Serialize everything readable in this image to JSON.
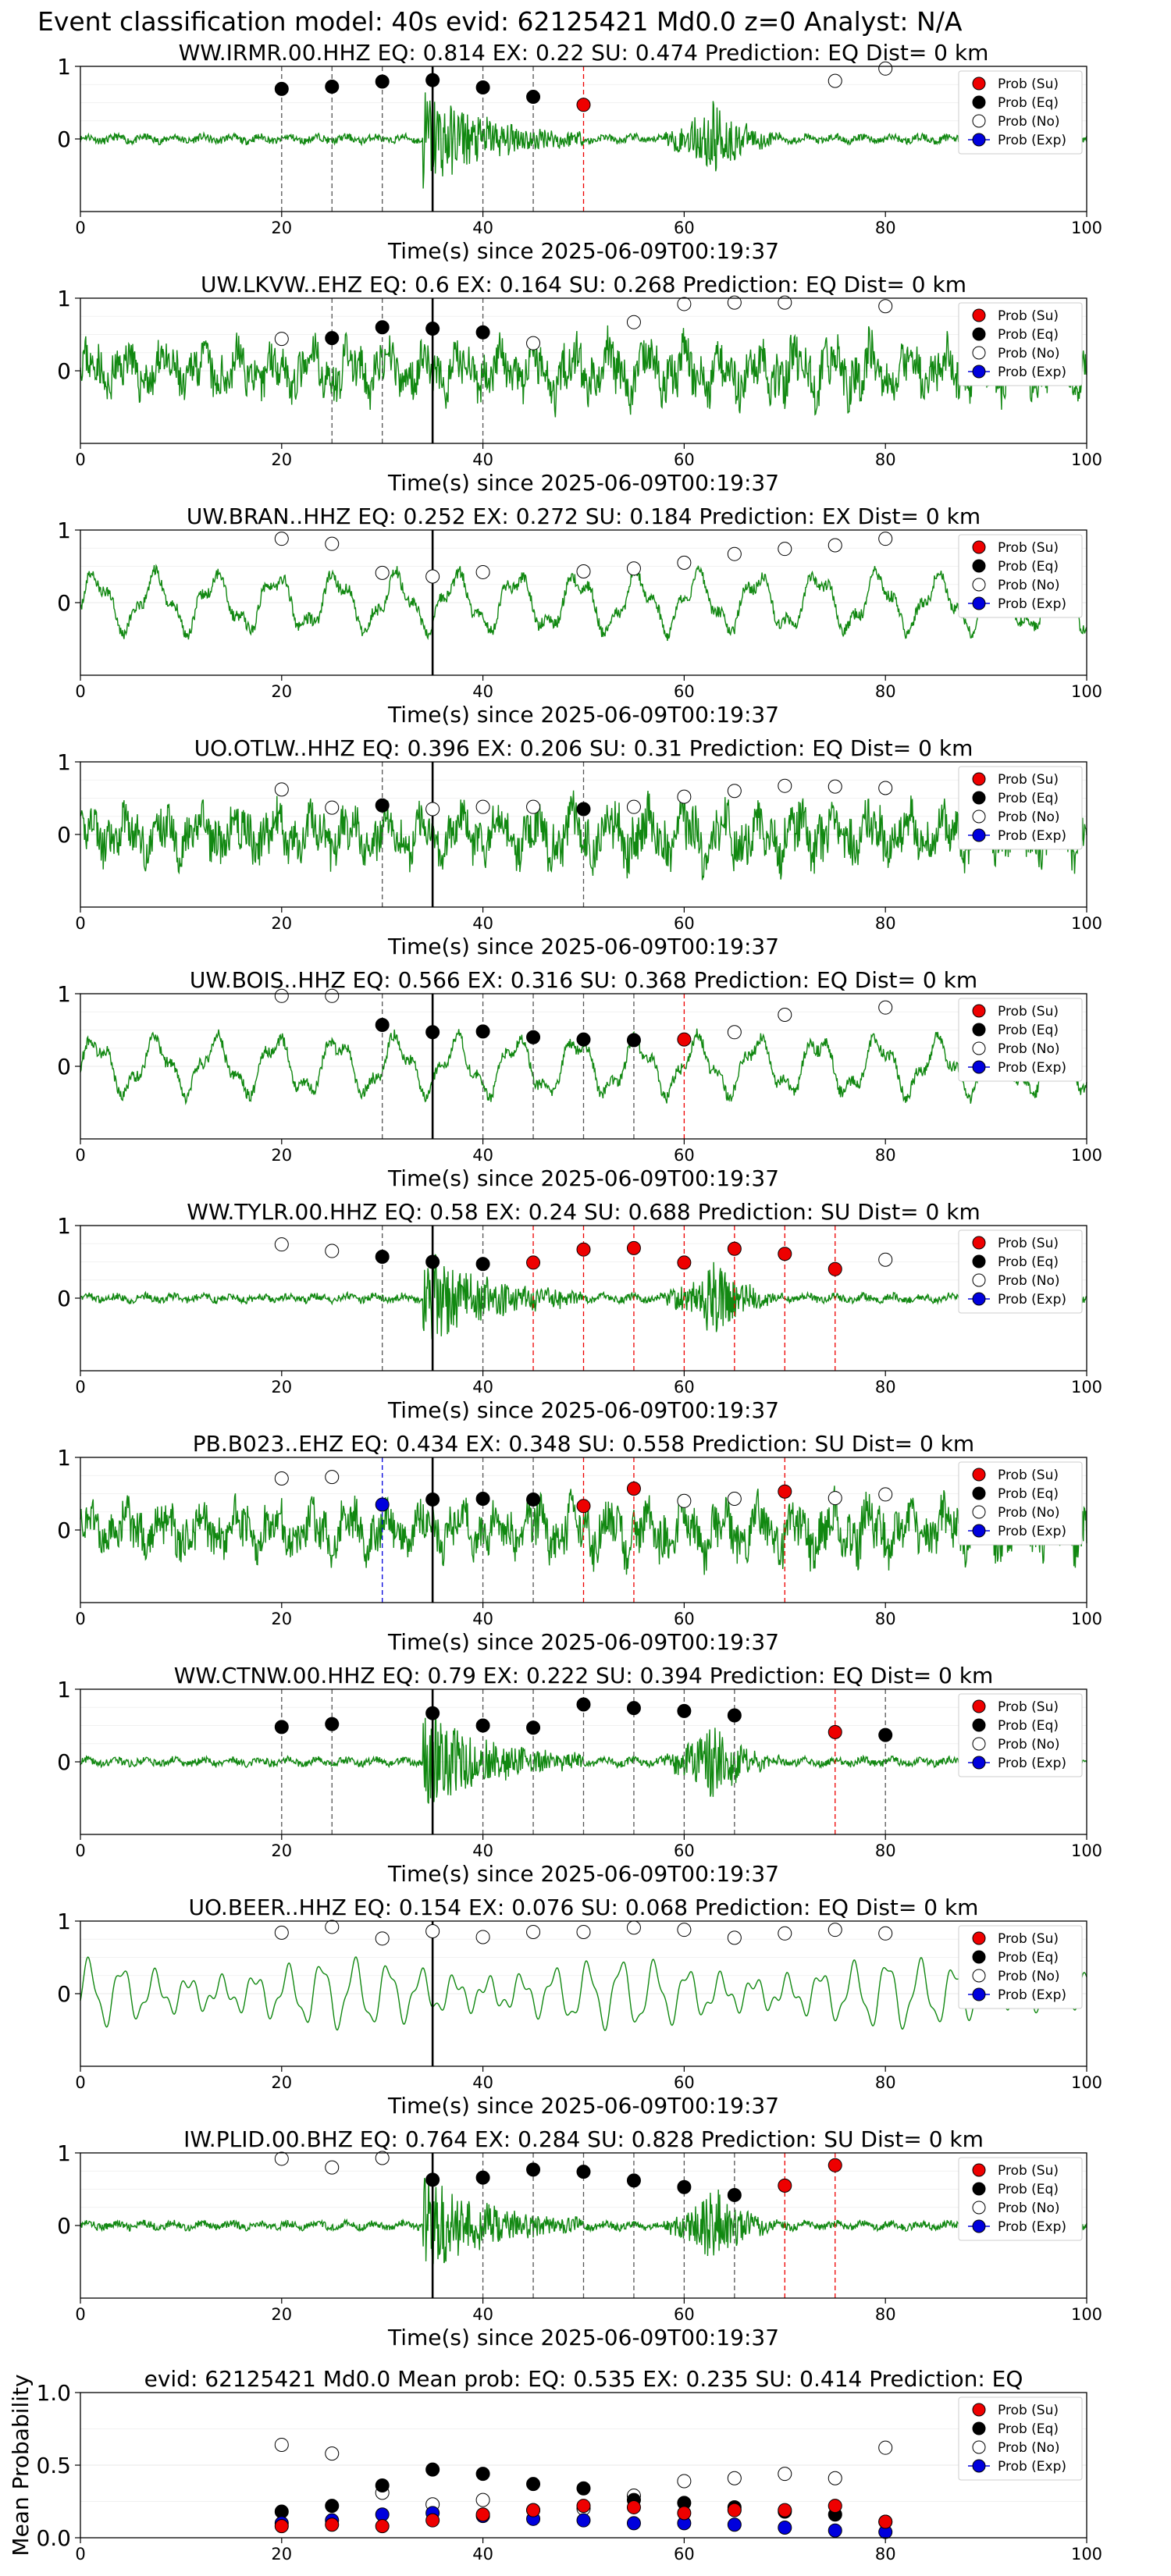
{
  "suptitle": "Event classification model: 40s evid: 62125421 Md0.0 z=0 Analyst: N/A",
  "colors": {
    "waveform": "#118811",
    "su": "#ee0000",
    "eq": "#000000",
    "no": "#ffffff",
    "exp": "#0000dd"
  },
  "legend_labels": [
    "Prob (Su)",
    "Prob (Eq)",
    "Prob (No)",
    "Prob (Exp)"
  ],
  "legend_placement": "top-right",
  "chart_data": [
    {
      "type": "scatter",
      "title": "WW.IRMR.00.HHZ   EQ: 0.814  EX: 0.22  SU: 0.474   Prediction: EQ    Dist= 0 km",
      "xlabel": "Time(s) since 2025-06-09T00:19:37",
      "xlim": [
        0,
        100
      ],
      "ylim": [
        -1,
        1
      ],
      "xticks": [
        0,
        20,
        40,
        60,
        80,
        100
      ],
      "yticks": [
        0,
        1
      ],
      "grid": "y-only",
      "arrival_line_x": 35,
      "waveform": "bursty",
      "points": [
        {
          "x": 20,
          "y": 0.69,
          "class": "eq"
        },
        {
          "x": 25,
          "y": 0.72,
          "class": "eq"
        },
        {
          "x": 30,
          "y": 0.79,
          "class": "eq"
        },
        {
          "x": 35,
          "y": 0.81,
          "class": "eq"
        },
        {
          "x": 40,
          "y": 0.71,
          "class": "eq"
        },
        {
          "x": 45,
          "y": 0.58,
          "class": "eq"
        },
        {
          "x": 50,
          "y": 0.47,
          "class": "su"
        },
        {
          "x": 75,
          "y": 0.8,
          "class": "no"
        },
        {
          "x": 80,
          "y": 0.97,
          "class": "no"
        }
      ]
    },
    {
      "type": "scatter",
      "title": "UW.LKVW..EHZ   EQ: 0.6  EX: 0.164  SU: 0.268   Prediction: EQ    Dist= 0 km",
      "xlabel": "Time(s) since 2025-06-09T00:19:37",
      "xlim": [
        0,
        100
      ],
      "ylim": [
        -1,
        1
      ],
      "xticks": [
        0,
        20,
        40,
        60,
        80,
        100
      ],
      "yticks": [
        0,
        1
      ],
      "grid": "y-only",
      "arrival_line_x": 35,
      "waveform": "noisy",
      "points": [
        {
          "x": 20,
          "y": 0.44,
          "class": "no"
        },
        {
          "x": 25,
          "y": 0.45,
          "class": "eq"
        },
        {
          "x": 30,
          "y": 0.6,
          "class": "eq"
        },
        {
          "x": 35,
          "y": 0.58,
          "class": "eq"
        },
        {
          "x": 40,
          "y": 0.53,
          "class": "eq"
        },
        {
          "x": 45,
          "y": 0.38,
          "class": "no"
        },
        {
          "x": 55,
          "y": 0.67,
          "class": "no"
        },
        {
          "x": 60,
          "y": 0.92,
          "class": "no"
        },
        {
          "x": 65,
          "y": 0.94,
          "class": "no"
        },
        {
          "x": 70,
          "y": 0.94,
          "class": "no"
        },
        {
          "x": 80,
          "y": 0.89,
          "class": "no"
        }
      ]
    },
    {
      "type": "scatter",
      "title": "UW.BRAN..HHZ   EQ: 0.252  EX: 0.272  SU: 0.184   Prediction: EX    Dist= 0 km",
      "xlabel": "Time(s) since 2025-06-09T00:19:37",
      "xlim": [
        0,
        100
      ],
      "ylim": [
        -1,
        1
      ],
      "xticks": [
        0,
        20,
        40,
        60,
        80,
        100
      ],
      "yticks": [
        0,
        1
      ],
      "grid": "y-only",
      "arrival_line_x": 35,
      "waveform": "lowfreq",
      "points": [
        {
          "x": 20,
          "y": 0.88,
          "class": "no"
        },
        {
          "x": 25,
          "y": 0.81,
          "class": "no"
        },
        {
          "x": 30,
          "y": 0.41,
          "class": "no"
        },
        {
          "x": 35,
          "y": 0.36,
          "class": "no"
        },
        {
          "x": 40,
          "y": 0.42,
          "class": "no"
        },
        {
          "x": 50,
          "y": 0.43,
          "class": "no"
        },
        {
          "x": 55,
          "y": 0.47,
          "class": "no"
        },
        {
          "x": 60,
          "y": 0.55,
          "class": "no"
        },
        {
          "x": 65,
          "y": 0.67,
          "class": "no"
        },
        {
          "x": 70,
          "y": 0.74,
          "class": "no"
        },
        {
          "x": 75,
          "y": 0.79,
          "class": "no"
        },
        {
          "x": 80,
          "y": 0.88,
          "class": "no"
        }
      ]
    },
    {
      "type": "scatter",
      "title": "UO.OTLW..HHZ   EQ: 0.396  EX: 0.206  SU: 0.31   Prediction: EQ    Dist= 0 km",
      "xlabel": "Time(s) since 2025-06-09T00:19:37",
      "xlim": [
        0,
        100
      ],
      "ylim": [
        -1,
        1
      ],
      "xticks": [
        0,
        20,
        40,
        60,
        80,
        100
      ],
      "yticks": [
        0,
        1
      ],
      "grid": "y-only",
      "arrival_line_x": 35,
      "waveform": "noisy",
      "points": [
        {
          "x": 20,
          "y": 0.62,
          "class": "no"
        },
        {
          "x": 25,
          "y": 0.37,
          "class": "no"
        },
        {
          "x": 30,
          "y": 0.4,
          "class": "eq"
        },
        {
          "x": 35,
          "y": 0.35,
          "class": "no"
        },
        {
          "x": 40,
          "y": 0.38,
          "class": "no"
        },
        {
          "x": 45,
          "y": 0.38,
          "class": "no"
        },
        {
          "x": 50,
          "y": 0.35,
          "class": "eq"
        },
        {
          "x": 55,
          "y": 0.38,
          "class": "no"
        },
        {
          "x": 60,
          "y": 0.52,
          "class": "no"
        },
        {
          "x": 65,
          "y": 0.6,
          "class": "no"
        },
        {
          "x": 70,
          "y": 0.67,
          "class": "no"
        },
        {
          "x": 75,
          "y": 0.66,
          "class": "no"
        },
        {
          "x": 80,
          "y": 0.64,
          "class": "no"
        }
      ]
    },
    {
      "type": "scatter",
      "title": "UW.BOIS..HHZ   EQ: 0.566  EX: 0.316  SU: 0.368   Prediction: EQ    Dist= 0 km",
      "xlabel": "Time(s) since 2025-06-09T00:19:37",
      "xlim": [
        0,
        100
      ],
      "ylim": [
        -1,
        1
      ],
      "xticks": [
        0,
        20,
        40,
        60,
        80,
        100
      ],
      "yticks": [
        0,
        1
      ],
      "grid": "y-only",
      "arrival_line_x": 35,
      "waveform": "lowfreq",
      "points": [
        {
          "x": 20,
          "y": 0.97,
          "class": "no"
        },
        {
          "x": 25,
          "y": 0.97,
          "class": "no"
        },
        {
          "x": 30,
          "y": 0.57,
          "class": "eq"
        },
        {
          "x": 35,
          "y": 0.47,
          "class": "eq"
        },
        {
          "x": 40,
          "y": 0.48,
          "class": "eq"
        },
        {
          "x": 45,
          "y": 0.4,
          "class": "eq"
        },
        {
          "x": 50,
          "y": 0.37,
          "class": "eq"
        },
        {
          "x": 55,
          "y": 0.36,
          "class": "eq"
        },
        {
          "x": 60,
          "y": 0.37,
          "class": "su"
        },
        {
          "x": 65,
          "y": 0.47,
          "class": "no"
        },
        {
          "x": 70,
          "y": 0.71,
          "class": "no"
        },
        {
          "x": 80,
          "y": 0.81,
          "class": "no"
        }
      ]
    },
    {
      "type": "scatter",
      "title": "WW.TYLR.00.HHZ   EQ: 0.58  EX: 0.24  SU: 0.688   Prediction: SU    Dist= 0 km",
      "xlabel": "Time(s) since 2025-06-09T00:19:37",
      "xlim": [
        0,
        100
      ],
      "ylim": [
        -1,
        1
      ],
      "xticks": [
        0,
        20,
        40,
        60,
        80,
        100
      ],
      "yticks": [
        0,
        1
      ],
      "grid": "y-only",
      "arrival_line_x": 35,
      "waveform": "bursty",
      "points": [
        {
          "x": 20,
          "y": 0.74,
          "class": "no"
        },
        {
          "x": 25,
          "y": 0.65,
          "class": "no"
        },
        {
          "x": 30,
          "y": 0.57,
          "class": "eq"
        },
        {
          "x": 35,
          "y": 0.5,
          "class": "eq"
        },
        {
          "x": 40,
          "y": 0.47,
          "class": "eq"
        },
        {
          "x": 45,
          "y": 0.49,
          "class": "su"
        },
        {
          "x": 50,
          "y": 0.67,
          "class": "su"
        },
        {
          "x": 55,
          "y": 0.69,
          "class": "su"
        },
        {
          "x": 60,
          "y": 0.49,
          "class": "su"
        },
        {
          "x": 65,
          "y": 0.68,
          "class": "su"
        },
        {
          "x": 70,
          "y": 0.61,
          "class": "su"
        },
        {
          "x": 75,
          "y": 0.4,
          "class": "su"
        },
        {
          "x": 80,
          "y": 0.53,
          "class": "no"
        }
      ]
    },
    {
      "type": "scatter",
      "title": "PB.B023..EHZ   EQ: 0.434  EX: 0.348  SU: 0.558   Prediction: SU    Dist= 0 km",
      "xlabel": "Time(s) since 2025-06-09T00:19:37",
      "xlim": [
        0,
        100
      ],
      "ylim": [
        -1,
        1
      ],
      "xticks": [
        0,
        20,
        40,
        60,
        80,
        100
      ],
      "yticks": [
        0,
        1
      ],
      "grid": "y-only",
      "arrival_line_x": 35,
      "waveform": "noisy",
      "points": [
        {
          "x": 20,
          "y": 0.71,
          "class": "no"
        },
        {
          "x": 25,
          "y": 0.73,
          "class": "no"
        },
        {
          "x": 30,
          "y": 0.35,
          "class": "exp"
        },
        {
          "x": 35,
          "y": 0.42,
          "class": "eq"
        },
        {
          "x": 40,
          "y": 0.43,
          "class": "eq"
        },
        {
          "x": 45,
          "y": 0.42,
          "class": "eq"
        },
        {
          "x": 50,
          "y": 0.33,
          "class": "su"
        },
        {
          "x": 55,
          "y": 0.57,
          "class": "su"
        },
        {
          "x": 60,
          "y": 0.4,
          "class": "no"
        },
        {
          "x": 65,
          "y": 0.43,
          "class": "no"
        },
        {
          "x": 70,
          "y": 0.53,
          "class": "su"
        },
        {
          "x": 75,
          "y": 0.44,
          "class": "no"
        },
        {
          "x": 80,
          "y": 0.49,
          "class": "no"
        }
      ]
    },
    {
      "type": "scatter",
      "title": "WW.CTNW.00.HHZ   EQ: 0.79  EX: 0.222  SU: 0.394   Prediction: EQ    Dist= 0 km",
      "xlabel": "Time(s) since 2025-06-09T00:19:37",
      "xlim": [
        0,
        100
      ],
      "ylim": [
        -1,
        1
      ],
      "xticks": [
        0,
        20,
        40,
        60,
        80,
        100
      ],
      "yticks": [
        0,
        1
      ],
      "grid": "y-only",
      "arrival_line_x": 35,
      "waveform": "bursty",
      "points": [
        {
          "x": 20,
          "y": 0.48,
          "class": "eq"
        },
        {
          "x": 25,
          "y": 0.52,
          "class": "eq"
        },
        {
          "x": 35,
          "y": 0.67,
          "class": "eq"
        },
        {
          "x": 40,
          "y": 0.5,
          "class": "eq"
        },
        {
          "x": 45,
          "y": 0.47,
          "class": "eq"
        },
        {
          "x": 50,
          "y": 0.79,
          "class": "eq"
        },
        {
          "x": 55,
          "y": 0.74,
          "class": "eq"
        },
        {
          "x": 60,
          "y": 0.7,
          "class": "eq"
        },
        {
          "x": 65,
          "y": 0.64,
          "class": "eq"
        },
        {
          "x": 75,
          "y": 0.41,
          "class": "su"
        },
        {
          "x": 80,
          "y": 0.37,
          "class": "eq"
        }
      ]
    },
    {
      "type": "scatter",
      "title": "UO.BEER..HHZ   EQ: 0.154  EX: 0.076  SU: 0.068   Prediction: EQ    Dist= 0 km",
      "xlabel": "Time(s) since 2025-06-09T00:19:37",
      "xlim": [
        0,
        100
      ],
      "ylim": [
        -1,
        1
      ],
      "xticks": [
        0,
        20,
        40,
        60,
        80,
        100
      ],
      "yticks": [
        0,
        1
      ],
      "grid": "y-only",
      "arrival_line_x": 35,
      "waveform": "smooth",
      "points": [
        {
          "x": 20,
          "y": 0.84,
          "class": "no"
        },
        {
          "x": 25,
          "y": 0.92,
          "class": "no"
        },
        {
          "x": 30,
          "y": 0.76,
          "class": "no"
        },
        {
          "x": 35,
          "y": 0.86,
          "class": "no"
        },
        {
          "x": 40,
          "y": 0.78,
          "class": "no"
        },
        {
          "x": 45,
          "y": 0.85,
          "class": "no"
        },
        {
          "x": 50,
          "y": 0.85,
          "class": "no"
        },
        {
          "x": 55,
          "y": 0.91,
          "class": "no"
        },
        {
          "x": 60,
          "y": 0.88,
          "class": "no"
        },
        {
          "x": 65,
          "y": 0.77,
          "class": "no"
        },
        {
          "x": 70,
          "y": 0.83,
          "class": "no"
        },
        {
          "x": 75,
          "y": 0.88,
          "class": "no"
        },
        {
          "x": 80,
          "y": 0.83,
          "class": "no"
        }
      ]
    },
    {
      "type": "scatter",
      "title": "IW.PLID.00.BHZ   EQ: 0.764  EX: 0.284  SU: 0.828   Prediction: SU    Dist= 0 km",
      "xlabel": "Time(s) since 2025-06-09T00:19:37",
      "xlim": [
        0,
        100
      ],
      "ylim": [
        -1,
        1
      ],
      "xticks": [
        0,
        20,
        40,
        60,
        80,
        100
      ],
      "yticks": [
        0,
        1
      ],
      "grid": "y-only",
      "arrival_line_x": 35,
      "waveform": "bursty",
      "points": [
        {
          "x": 20,
          "y": 0.92,
          "class": "no"
        },
        {
          "x": 25,
          "y": 0.8,
          "class": "no"
        },
        {
          "x": 30,
          "y": 0.93,
          "class": "no"
        },
        {
          "x": 35,
          "y": 0.63,
          "class": "eq"
        },
        {
          "x": 40,
          "y": 0.66,
          "class": "eq"
        },
        {
          "x": 45,
          "y": 0.77,
          "class": "eq"
        },
        {
          "x": 50,
          "y": 0.74,
          "class": "eq"
        },
        {
          "x": 55,
          "y": 0.62,
          "class": "eq"
        },
        {
          "x": 60,
          "y": 0.53,
          "class": "eq"
        },
        {
          "x": 65,
          "y": 0.42,
          "class": "eq"
        },
        {
          "x": 70,
          "y": 0.55,
          "class": "su"
        },
        {
          "x": 75,
          "y": 0.83,
          "class": "su"
        }
      ]
    },
    {
      "type": "scatter",
      "title": "evid: 62125421  Md0.0   Mean prob:   EQ: 0.535  EX: 0.235  SU: 0.414   Prediction: EQ",
      "xlabel": "",
      "ylabel": "Mean Probability",
      "xlim": [
        0,
        100
      ],
      "ylim": [
        0,
        1
      ],
      "xticks": [
        0,
        20,
        40,
        60,
        80,
        100
      ],
      "yticks": [
        0.0,
        0.5,
        1.0
      ],
      "grid": "y-only",
      "series": [
        {
          "name": "Prob (No)",
          "class": "no",
          "x": [
            20,
            25,
            30,
            35,
            40,
            45,
            50,
            55,
            60,
            65,
            70,
            75,
            80
          ],
          "values": [
            0.64,
            0.58,
            0.31,
            0.23,
            0.26,
            0.19,
            0.2,
            0.29,
            0.39,
            0.41,
            0.44,
            0.41,
            0.62
          ]
        },
        {
          "name": "Prob (Eq)",
          "class": "eq",
          "x": [
            20,
            25,
            30,
            35,
            40,
            45,
            50,
            55,
            60,
            65,
            70,
            75,
            80
          ],
          "values": [
            0.18,
            0.22,
            0.36,
            0.47,
            0.44,
            0.37,
            0.34,
            0.26,
            0.24,
            0.21,
            0.18,
            0.16,
            0.11
          ]
        },
        {
          "name": "Prob (Exp)",
          "class": "exp",
          "x": [
            20,
            25,
            30,
            35,
            40,
            45,
            50,
            55,
            60,
            65,
            70,
            75,
            80
          ],
          "values": [
            0.1,
            0.12,
            0.16,
            0.17,
            0.15,
            0.13,
            0.12,
            0.1,
            0.1,
            0.09,
            0.07,
            0.05,
            0.04
          ]
        },
        {
          "name": "Prob (Su)",
          "class": "su",
          "x": [
            20,
            25,
            30,
            35,
            40,
            45,
            50,
            55,
            60,
            65,
            70,
            75,
            80
          ],
          "values": [
            0.08,
            0.09,
            0.08,
            0.12,
            0.16,
            0.19,
            0.22,
            0.21,
            0.17,
            0.19,
            0.19,
            0.22,
            0.11
          ]
        }
      ]
    }
  ]
}
